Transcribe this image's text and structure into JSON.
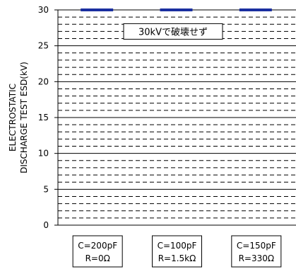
{
  "chart_data": {
    "type": "scatter",
    "title": "",
    "xlabel": "",
    "ylabel_lines": [
      "ELECTROSTATIC",
      "DISCHARGE TEST ESD(kV)"
    ],
    "ylim": [
      0,
      30
    ],
    "yticks": [
      0,
      5,
      10,
      15,
      20,
      25,
      30
    ],
    "major_grid": [
      5,
      10,
      15,
      20,
      25
    ],
    "minor_step": 1,
    "grid_color": "#000000",
    "marker_color": "#1a2fa0",
    "categories": [
      {
        "line1": "C=200pF",
        "line2": "R=0Ω"
      },
      {
        "line1": "C=100pF",
        "line2": "R=1.5kΩ"
      },
      {
        "line1": "C=150pF",
        "line2": "R=330Ω"
      }
    ],
    "values": [
      30,
      30,
      30
    ],
    "annotation": "30kVで破壊せず"
  }
}
